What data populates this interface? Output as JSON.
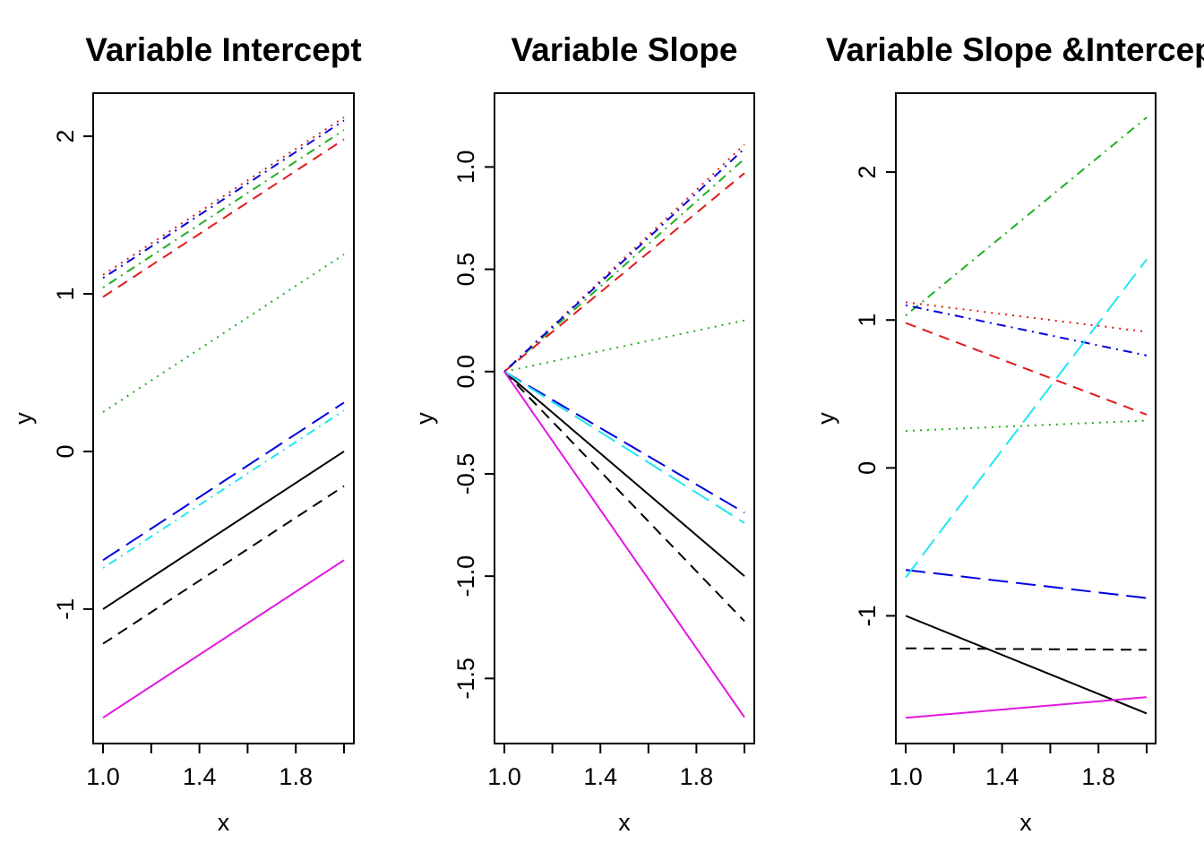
{
  "colors": {
    "black": "#000000",
    "red": "#df1b1b",
    "green": "#20b020",
    "blue": "#0000e0",
    "cyan": "#20e6f0",
    "magenta": "#e018e0"
  },
  "chart_data": [
    {
      "type": "line",
      "title": "Variable Intercept",
      "xlabel": "x",
      "ylabel": "y",
      "xlim": [
        1.0,
        2.0
      ],
      "ylim": [
        -1.7,
        2.12
      ],
      "x_ticks": [
        1.0,
        1.2,
        1.4,
        1.6,
        1.8,
        2.0
      ],
      "x_tick_labels": [
        "1.0",
        "",
        "1.4",
        "",
        "1.8",
        ""
      ],
      "y_ticks": [
        -1,
        0,
        1,
        2
      ],
      "y_tick_labels": [
        "-1",
        "0",
        "1",
        "2"
      ],
      "grid": false,
      "series": [
        {
          "color": "black",
          "dash": "solid",
          "x": [
            1.0,
            2.0
          ],
          "y": [
            -1.0,
            0.0
          ]
        },
        {
          "color": "black",
          "dash": "dashed",
          "x": [
            1.0,
            2.0
          ],
          "y": [
            -1.22,
            -0.22
          ]
        },
        {
          "color": "red",
          "dash": "dotted",
          "x": [
            1.0,
            2.0
          ],
          "y": [
            1.12,
            2.12
          ]
        },
        {
          "color": "red",
          "dash": "dashed",
          "x": [
            1.0,
            2.0
          ],
          "y": [
            0.98,
            1.98
          ]
        },
        {
          "color": "green",
          "dash": "dotdash",
          "x": [
            1.0,
            2.0
          ],
          "y": [
            1.04,
            2.04
          ]
        },
        {
          "color": "green",
          "dash": "dotted",
          "x": [
            1.0,
            2.0
          ],
          "y": [
            0.25,
            1.25
          ]
        },
        {
          "color": "blue",
          "dash": "dotdash",
          "x": [
            1.0,
            2.0
          ],
          "y": [
            1.1,
            2.1
          ]
        },
        {
          "color": "blue",
          "dash": "longdash",
          "x": [
            1.0,
            2.0
          ],
          "y": [
            -0.69,
            0.31
          ]
        },
        {
          "color": "cyan",
          "dash": "dotdash",
          "x": [
            1.0,
            2.0
          ],
          "y": [
            -0.74,
            0.26
          ]
        },
        {
          "color": "magenta",
          "dash": "solid",
          "x": [
            1.0,
            2.0
          ],
          "y": [
            -1.69,
            -0.69
          ]
        }
      ]
    },
    {
      "type": "line",
      "title": "Variable Slope",
      "xlabel": "x",
      "ylabel": "y",
      "xlim": [
        1.0,
        2.0
      ],
      "ylim": [
        -1.7,
        1.12
      ],
      "x_ticks": [
        1.0,
        1.2,
        1.4,
        1.6,
        1.8,
        2.0
      ],
      "x_tick_labels": [
        "1.0",
        "",
        "1.4",
        "",
        "1.8",
        ""
      ],
      "y_ticks": [
        -1.5,
        -1.0,
        -0.5,
        0.0,
        0.5,
        1.0
      ],
      "y_tick_labels": [
        "-1.5",
        "-1.0",
        "-0.5",
        "0.0",
        "0.5",
        "1.0"
      ],
      "grid": false,
      "series": [
        {
          "color": "black",
          "dash": "solid",
          "x": [
            1.0,
            2.0
          ],
          "y": [
            0.0,
            -1.0
          ]
        },
        {
          "color": "black",
          "dash": "dashed",
          "x": [
            1.0,
            2.0
          ],
          "y": [
            0.0,
            -1.22
          ]
        },
        {
          "color": "red",
          "dash": "dotted",
          "x": [
            1.0,
            2.0
          ],
          "y": [
            0.0,
            1.11
          ]
        },
        {
          "color": "red",
          "dash": "dashed",
          "x": [
            1.0,
            2.0
          ],
          "y": [
            0.0,
            0.97
          ]
        },
        {
          "color": "green",
          "dash": "dotdash",
          "x": [
            1.0,
            2.0
          ],
          "y": [
            0.0,
            1.04
          ]
        },
        {
          "color": "green",
          "dash": "dotted",
          "x": [
            1.0,
            2.0
          ],
          "y": [
            0.0,
            0.25
          ]
        },
        {
          "color": "blue",
          "dash": "dotdash",
          "x": [
            1.0,
            2.0
          ],
          "y": [
            0.0,
            1.09
          ]
        },
        {
          "color": "blue",
          "dash": "longdash",
          "x": [
            1.0,
            2.0
          ],
          "y": [
            0.0,
            -0.69
          ]
        },
        {
          "color": "cyan",
          "dash": "longdash",
          "x": [
            1.0,
            2.0
          ],
          "y": [
            0.0,
            -0.74
          ]
        },
        {
          "color": "magenta",
          "dash": "solid",
          "x": [
            1.0,
            2.0
          ],
          "y": [
            0.0,
            -1.69
          ]
        }
      ]
    },
    {
      "type": "line",
      "title": "Variable Slope &Intercept",
      "xlabel": "x",
      "ylabel": "y",
      "xlim": [
        1.0,
        2.0
      ],
      "ylim": [
        -1.7,
        2.37
      ],
      "x_ticks": [
        1.0,
        1.2,
        1.4,
        1.6,
        1.8,
        2.0
      ],
      "x_tick_labels": [
        "1.0",
        "",
        "1.4",
        "",
        "1.8",
        ""
      ],
      "y_ticks": [
        -1,
        0,
        1,
        2
      ],
      "y_tick_labels": [
        "-1",
        "0",
        "1",
        "2"
      ],
      "grid": false,
      "series": [
        {
          "color": "black",
          "dash": "solid",
          "x": [
            1.0,
            2.0
          ],
          "y": [
            -1.0,
            -1.66
          ]
        },
        {
          "color": "black",
          "dash": "dashed",
          "x": [
            1.0,
            2.0
          ],
          "y": [
            -1.22,
            -1.23
          ]
        },
        {
          "color": "red",
          "dash": "dotted",
          "x": [
            1.0,
            2.0
          ],
          "y": [
            1.12,
            0.92
          ]
        },
        {
          "color": "red",
          "dash": "dashed",
          "x": [
            1.0,
            2.0
          ],
          "y": [
            0.98,
            0.36
          ]
        },
        {
          "color": "green",
          "dash": "dotdash",
          "x": [
            1.0,
            2.0
          ],
          "y": [
            1.03,
            2.37
          ]
        },
        {
          "color": "green",
          "dash": "dotted",
          "x": [
            1.0,
            2.0
          ],
          "y": [
            0.25,
            0.32
          ]
        },
        {
          "color": "blue",
          "dash": "dotdash",
          "x": [
            1.0,
            2.0
          ],
          "y": [
            1.1,
            0.76
          ]
        },
        {
          "color": "blue",
          "dash": "longdash",
          "x": [
            1.0,
            2.0
          ],
          "y": [
            -0.69,
            -0.88
          ]
        },
        {
          "color": "cyan",
          "dash": "longdash",
          "x": [
            1.0,
            2.0
          ],
          "y": [
            -0.74,
            1.41
          ]
        },
        {
          "color": "magenta",
          "dash": "solid",
          "x": [
            1.0,
            2.0
          ],
          "y": [
            -1.69,
            -1.55
          ]
        }
      ]
    }
  ]
}
